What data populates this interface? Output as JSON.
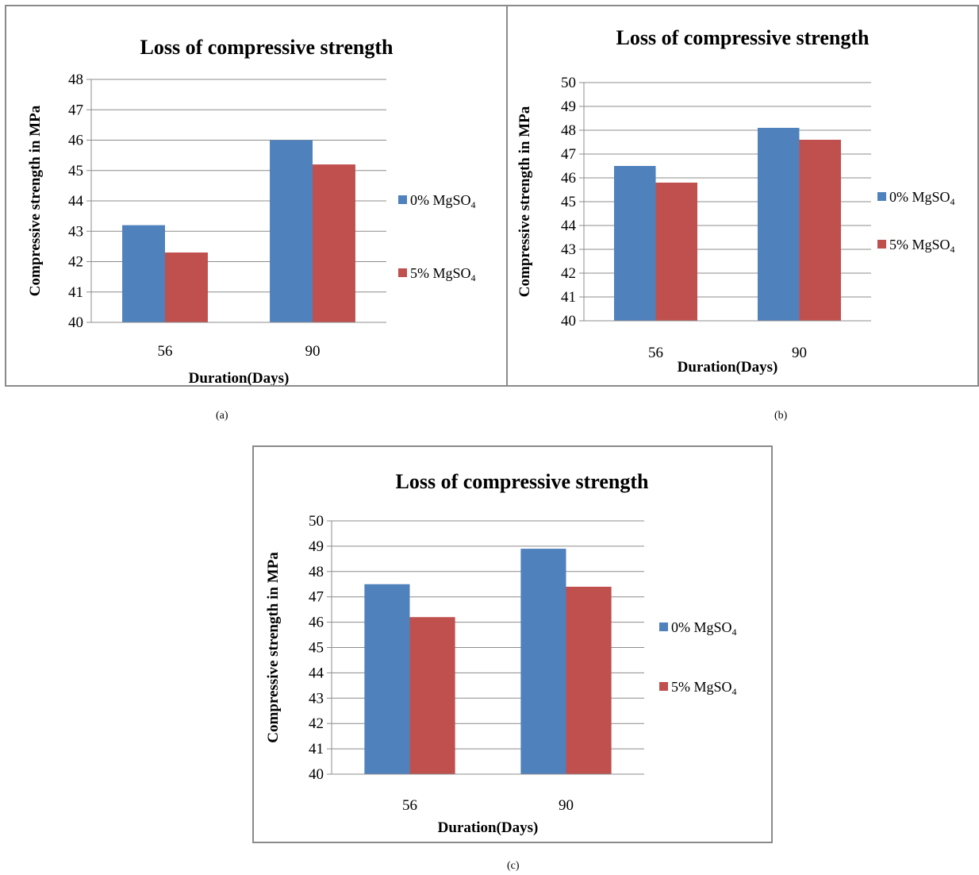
{
  "chart_data": [
    {
      "type": "bar",
      "panel": "a",
      "title": "Loss of compressive strength",
      "xlabel": "Duration(Days)",
      "ylabel": "Compressive strength in MPa",
      "categories": [
        "56",
        "90"
      ],
      "ylim": [
        40,
        48
      ],
      "yticks": [
        40,
        41,
        42,
        43,
        44,
        45,
        46,
        47,
        48
      ],
      "grid": true,
      "legend_position": "right",
      "series": [
        {
          "name": "0% MgSO4",
          "values": [
            43.2,
            46.0
          ],
          "color": "#4F81BD"
        },
        {
          "name": "5% MgSO4",
          "values": [
            42.3,
            45.2
          ],
          "color": "#C0504D"
        }
      ]
    },
    {
      "type": "bar",
      "panel": "b",
      "title": "Loss of compressive strength",
      "xlabel": "Duration(Days)",
      "ylabel": "Compressive strength in MPa",
      "categories": [
        "56",
        "90"
      ],
      "ylim": [
        40,
        50
      ],
      "yticks": [
        40,
        41,
        42,
        43,
        44,
        45,
        46,
        47,
        48,
        49,
        50
      ],
      "grid": true,
      "legend_position": "right",
      "series": [
        {
          "name": "0% MgSO4",
          "values": [
            46.5,
            48.1
          ],
          "color": "#4F81BD"
        },
        {
          "name": "5% MgSO4",
          "values": [
            45.8,
            47.6
          ],
          "color": "#C0504D"
        }
      ]
    },
    {
      "type": "bar",
      "panel": "c",
      "title": "Loss of compressive strength",
      "xlabel": "Duration(Days)",
      "ylabel": "Compressive strength in MPa",
      "categories": [
        "56",
        "90"
      ],
      "ylim": [
        40,
        50
      ],
      "yticks": [
        40,
        41,
        42,
        43,
        44,
        45,
        46,
        47,
        48,
        49,
        50
      ],
      "grid": true,
      "legend_position": "right",
      "series": [
        {
          "name": "0% MgSO4",
          "values": [
            47.5,
            48.9
          ],
          "color": "#4F81BD"
        },
        {
          "name": "5% MgSO4",
          "values": [
            46.2,
            47.4
          ],
          "color": "#C0504D"
        }
      ]
    }
  ],
  "captions": {
    "a": "(a)",
    "b": "(b)",
    "c": "(c)"
  }
}
